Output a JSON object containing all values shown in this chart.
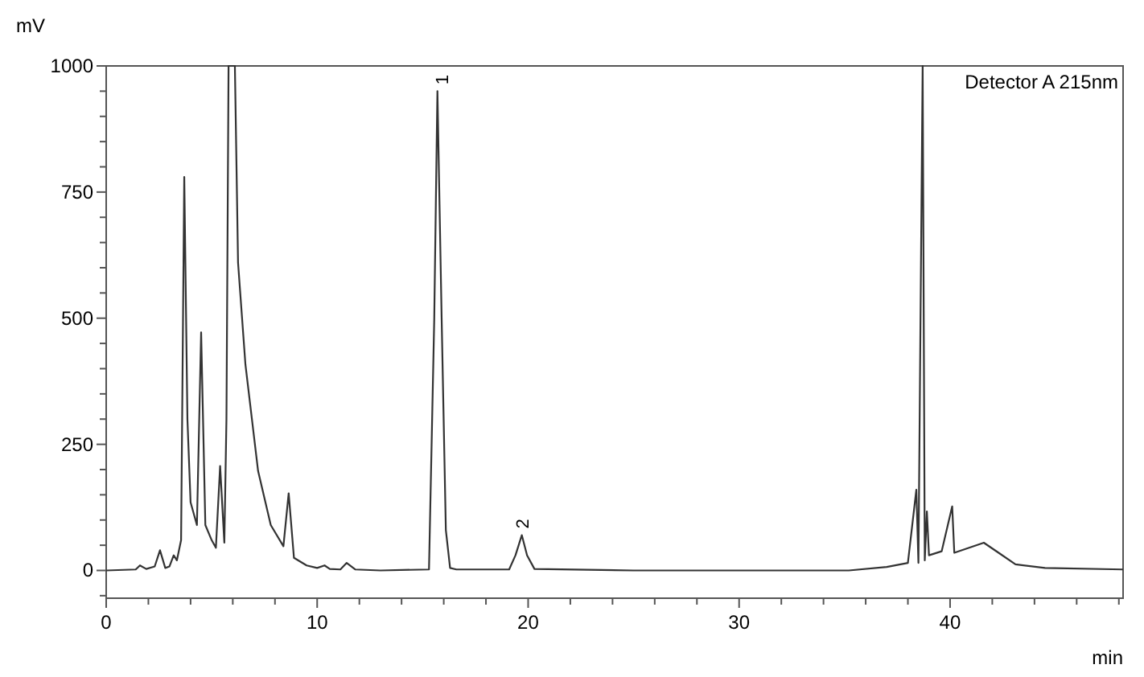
{
  "chart_data": {
    "type": "line",
    "xlabel": "min",
    "ylabel": "mV",
    "annotations": [
      {
        "text": "1",
        "x": 15.9,
        "y": 950
      },
      {
        "text": "2",
        "x": 19.7,
        "y": 70
      },
      "Detector A 215nm"
    ],
    "xlim": [
      0,
      48.2
    ],
    "ylim": [
      -55,
      1000
    ],
    "xticks": [
      0,
      {
        "value": 2,
        "label": null
      },
      {
        "value": 4,
        "label": null
      },
      {
        "value": 6,
        "label": null
      },
      {
        "value": 8,
        "label": null
      },
      10,
      {
        "value": 12,
        "label": null
      },
      {
        "value": 14,
        "label": null
      },
      {
        "value": 16,
        "label": null
      },
      {
        "value": 18,
        "label": null
      },
      20,
      {
        "value": 22,
        "label": null
      },
      {
        "value": 24,
        "label": null
      },
      {
        "value": 26,
        "label": null
      },
      {
        "value": 28,
        "label": null
      },
      30,
      {
        "value": 32,
        "label": null
      },
      {
        "value": 34,
        "label": null
      },
      {
        "value": 36,
        "label": null
      },
      {
        "value": 38,
        "label": null
      },
      40,
      {
        "value": 42,
        "label": null
      },
      {
        "value": 44,
        "label": null
      },
      {
        "value": 46,
        "label": null
      },
      {
        "value": 48,
        "label": null
      }
    ],
    "yticks": [
      {
        "value": -50,
        "label": null
      },
      0,
      {
        "value": 50,
        "label": null
      },
      {
        "value": 100,
        "label": null
      },
      {
        "value": 150,
        "label": null
      },
      {
        "value": 200,
        "label": null
      },
      250,
      {
        "value": 300,
        "label": null
      },
      {
        "value": 350,
        "label": null
      },
      {
        "value": 400,
        "label": null
      },
      {
        "value": 450,
        "label": null
      },
      500,
      {
        "value": 550,
        "label": null
      },
      {
        "value": 600,
        "label": null
      },
      {
        "value": 650,
        "label": null
      },
      {
        "value": 700,
        "label": null
      },
      750,
      {
        "value": 800,
        "label": null
      },
      {
        "value": 850,
        "label": null
      },
      {
        "value": 900,
        "label": null
      },
      {
        "value": 950,
        "label": null
      },
      1000
    ],
    "grid": false,
    "marker": "none",
    "line_style": "solid",
    "series": [
      {
        "color": "#333333",
        "x": [
          0,
          1.4,
          1.6,
          1.9,
          2.3,
          2.55,
          2.8,
          3.0,
          3.2,
          3.35,
          3.55,
          3.7,
          3.85,
          4.0,
          4.3,
          4.5,
          4.7,
          5.0,
          5.2,
          5.4,
          5.6,
          5.7,
          5.8,
          6.1,
          6.25,
          6.6,
          7.2,
          7.8,
          8.4,
          8.65,
          8.9,
          9.5,
          10.0,
          10.35,
          10.6,
          11.1,
          11.4,
          11.8,
          13,
          15.3,
          15.55,
          15.7,
          15.9,
          16.1,
          16.3,
          16.6,
          19.1,
          19.4,
          19.7,
          19.95,
          20.3,
          25,
          35.2,
          37.0,
          38.0,
          38.4,
          38.5,
          38.7,
          38.8,
          38.9,
          39.0,
          39.6,
          40.1,
          40.2,
          41.6,
          42.3,
          43.1,
          44.5,
          48.2
        ],
        "values": [
          0,
          2,
          10,
          3,
          8,
          40,
          5,
          8,
          30,
          20,
          60,
          780,
          300,
          135,
          90,
          472,
          90,
          60,
          45,
          207,
          55,
          300,
          1000,
          1000,
          610,
          408,
          197,
          90,
          48,
          153,
          25,
          10,
          5,
          10,
          3,
          2,
          15,
          2,
          0,
          2,
          500,
          950,
          500,
          80,
          5,
          2,
          2,
          30,
          70,
          30,
          3,
          0,
          0,
          7,
          15,
          160,
          15,
          1000,
          20,
          117,
          30,
          38,
          127,
          35,
          55,
          35,
          12,
          5,
          2
        ]
      }
    ]
  }
}
